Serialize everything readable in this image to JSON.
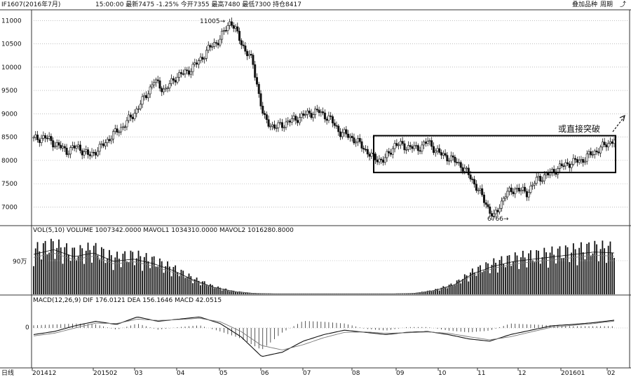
{
  "header": {
    "instrument": "IF1607(2016年7月)",
    "quote_text": "15:00:00 最新7475 -1.25% 今开7355 最高7480 最低7300 持仓8417",
    "button_overlay": "叠加品种",
    "button_period": "周期",
    "close_icon": "close-icon"
  },
  "panels": {
    "volume_header": "VOL(5,10) VOLUME 1007342.0000 MAVOL1 1034310.0000 MAVOL2 1016280.8000",
    "macd_header": "MACD(12,26,9) DIF 176.0121 DEA 156.1646 MACD 42.0515",
    "volume_tick": "90万",
    "macd_tick": "0"
  },
  "chart_data": {
    "type": "candlestick",
    "price_axis_ticks": [
      "11000",
      "10500",
      "10000",
      "9500",
      "9000",
      "8500",
      "8000",
      "7500",
      "7000"
    ],
    "ylim": [
      6600,
      11200
    ],
    "x_tick_labels": [
      "日线",
      "201412",
      "201502",
      "03",
      "04",
      "05",
      "06",
      "07",
      "08",
      "09",
      "10",
      "11",
      "12",
      "201601",
      "02"
    ],
    "annotations": [
      {
        "text": "11005",
        "value": 11005
      },
      {
        "text": "6766",
        "value": 6766
      },
      {
        "text": "或直接突破",
        "note": "breakout arrow"
      }
    ],
    "box_range": [
      7740,
      8530
    ],
    "price_path": [
      8450,
      8500,
      8350,
      8200,
      8300,
      8100,
      8250,
      8500,
      8700,
      8950,
      9300,
      9700,
      9500,
      9800,
      9900,
      10100,
      10400,
      10600,
      11005,
      10500,
      10100,
      8900,
      8700,
      8800,
      8900,
      9000,
      9050,
      8900,
      8600,
      8500,
      8300,
      8050,
      8000,
      8350,
      8300,
      8250,
      8400,
      8150,
      8050,
      7900,
      7600,
      7200,
      6766,
      7250,
      7400,
      7300,
      7600,
      7700,
      7850,
      7950,
      8000,
      8150,
      8300,
      8450
    ],
    "volume_profile": [
      0.85,
      0.95,
      0.8,
      0.88,
      0.7,
      0.75,
      0.65,
      0.5,
      0.3,
      0.15,
      0.06,
      0.02,
      0.01,
      0.01,
      0.01,
      0.01,
      0.01,
      0.01,
      0.01,
      0.02,
      0.08,
      0.2,
      0.45,
      0.6,
      0.7,
      0.75,
      0.8,
      0.85,
      0.9,
      0.88
    ],
    "macd_dif": [
      -150,
      -80,
      50,
      150,
      80,
      250,
      150,
      200,
      250,
      100,
      -200,
      -650,
      -550,
      -300,
      -150,
      -50,
      -100,
      -150,
      -100,
      -80,
      -150,
      -250,
      -300,
      -150,
      -50,
      50,
      80,
      120,
      176
    ],
    "macd_dea": [
      -180,
      -120,
      0,
      110,
      100,
      200,
      170,
      190,
      220,
      140,
      -80,
      -400,
      -500,
      -380,
      -220,
      -100,
      -90,
      -120,
      -110,
      -90,
      -120,
      -200,
      -270,
      -200,
      -90,
      20,
      60,
      100,
      156
    ]
  }
}
